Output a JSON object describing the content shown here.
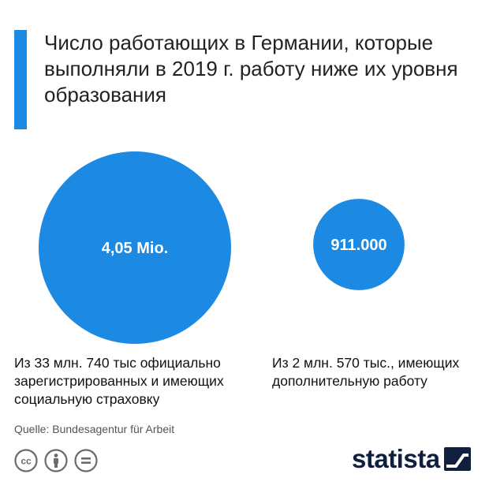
{
  "title": "Число работающих в Германии, которые выполняли в 2019 г. работу ниже их уровня образования",
  "source": "Quelle: Bundesagentur für Arbeit",
  "brand": "statista",
  "colors": {
    "accent": "#1c8ae2",
    "bubble": "#1c8ae2",
    "text": "#222222",
    "source": "#555555",
    "brand": "#0f1f3d"
  },
  "license_icons": [
    "cc-icon",
    "by-attribution-icon",
    "no-derivatives-icon"
  ],
  "chart_data": {
    "type": "bubble",
    "title": "Число работающих в Германии, которые выполняли в 2019 г. работу ниже их уровня образования",
    "categories": [
      "Из 33 млн. 740 тыс официально зарегистрированных и имеющих социальную страховку",
      "Из 2 млн. 570 тыс., имеющих дополнительную работу"
    ],
    "values": [
      4050000,
      911000
    ],
    "value_labels": [
      "4,05 Mio.",
      "911.000"
    ],
    "legend": "none",
    "grid": false
  }
}
